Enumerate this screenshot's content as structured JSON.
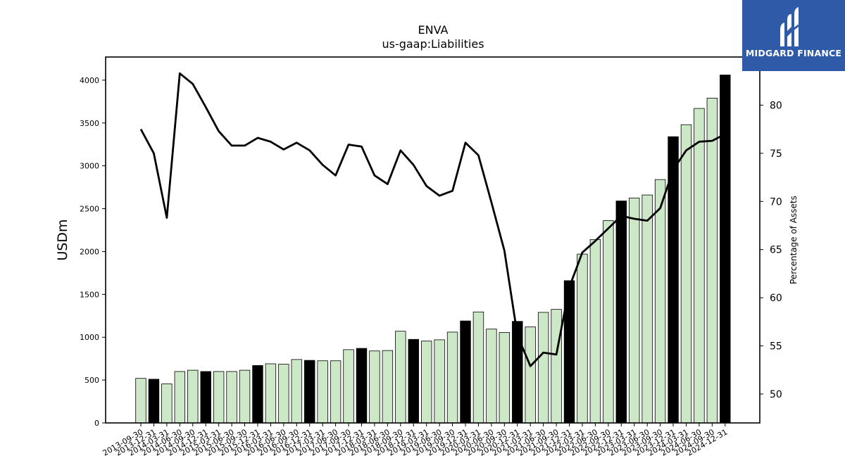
{
  "brand": {
    "name": "MIDGARD FINANCE",
    "color": "#2f5aa8"
  },
  "chart_data": {
    "type": "bar",
    "title": "ENVA",
    "subtitle": "us-gaap:Liabilities",
    "ylabel": "USDm",
    "y2label": "Percentage of Assets",
    "ylim": [
      0,
      4270
    ],
    "y2lim": [
      47,
      85
    ],
    "yticks": [
      0,
      500,
      1000,
      1500,
      2000,
      2500,
      3000,
      3500,
      4000
    ],
    "y2ticks": [
      50,
      55,
      60,
      65,
      70,
      75,
      80
    ],
    "colors": {
      "bar": "#cde8c6",
      "bar_q4": "#000000",
      "line": "#000000"
    },
    "categories": [
      "2013-09-30",
      "2013-12-31",
      "2014-03-31",
      "2014-06-30",
      "2014-09-30",
      "2014-12-31",
      "2015-03-31",
      "2015-06-30",
      "2015-09-30",
      "2015-12-31",
      "2016-03-31",
      "2016-06-30",
      "2016-09-30",
      "2016-12-31",
      "2017-03-31",
      "2017-06-30",
      "2017-09-30",
      "2017-12-31",
      "2018-03-31",
      "2018-06-30",
      "2018-09-30",
      "2018-12-31",
      "2019-03-31",
      "2019-06-30",
      "2019-09-30",
      "2019-12-31",
      "2020-03-31",
      "2020-06-30",
      "2020-09-30",
      "2020-12-31",
      "2021-03-31",
      "2021-06-30",
      "2021-09-30",
      "2021-12-31",
      "2022-03-31",
      "2022-06-30",
      "2022-09-30",
      "2022-12-31",
      "2023-03-31",
      "2023-06-30",
      "2023-09-30",
      "2023-12-31",
      "2024-03-31",
      "2024-06-30",
      "2024-09-30",
      "2024-12-31"
    ],
    "series": [
      {
        "type": "bar",
        "values": [
          520,
          510,
          455,
          600,
          615,
          600,
          600,
          600,
          615,
          670,
          690,
          685,
          740,
          730,
          725,
          725,
          855,
          870,
          840,
          845,
          1070,
          975,
          955,
          970,
          1060,
          1190,
          1295,
          1095,
          1055,
          1185,
          1120,
          1290,
          1325,
          1660,
          1970,
          2140,
          2360,
          2590,
          2625,
          2660,
          2840,
          3340,
          3480,
          3670,
          3790,
          4060
        ]
      },
      {
        "type": "line",
        "axis": "right",
        "values": [
          77.5,
          75.0,
          68.3,
          83.3,
          82.2,
          79.8,
          77.3,
          75.8,
          75.8,
          76.6,
          76.2,
          75.4,
          76.1,
          75.3,
          73.8,
          72.7,
          75.9,
          75.7,
          72.7,
          71.8,
          75.3,
          73.8,
          71.6,
          70.6,
          71.1,
          76.1,
          74.8,
          69.9,
          64.9,
          56.1,
          52.9,
          54.3,
          54.1,
          61.1,
          64.7,
          65.9,
          67.2,
          68.5,
          68.2,
          68.0,
          69.3,
          73.3,
          75.3,
          76.2,
          76.3,
          77.0
        ]
      }
    ]
  }
}
